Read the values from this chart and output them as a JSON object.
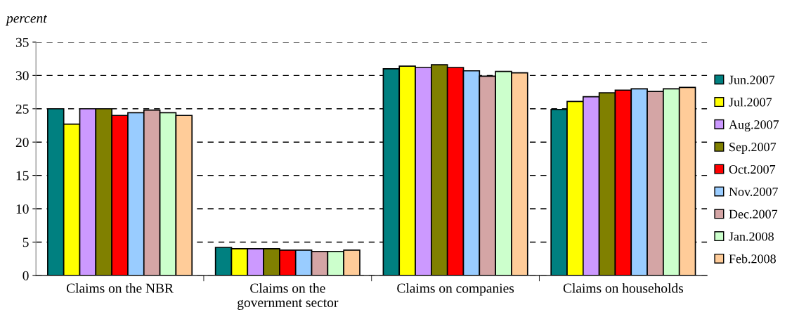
{
  "chart_data": {
    "type": "bar",
    "ylabel": "percent",
    "categories": [
      "Claims on the NBR",
      "Claims on the\ngovernment sector",
      "Claims on companies",
      "Claims on households"
    ],
    "series": [
      {
        "name": "Jun.2007",
        "color": "#008080",
        "values": [
          25.0,
          4.2,
          31.0,
          24.9
        ]
      },
      {
        "name": "Jul.2007",
        "color": "#ffff00",
        "values": [
          22.7,
          4.0,
          31.4,
          26.1
        ]
      },
      {
        "name": "Aug.2007",
        "color": "#cc99ff",
        "values": [
          25.0,
          4.0,
          31.2,
          26.8
        ]
      },
      {
        "name": "Sep.2007",
        "color": "#808000",
        "values": [
          25.0,
          4.0,
          31.6,
          27.4
        ]
      },
      {
        "name": "Oct.2007",
        "color": "#ff0000",
        "values": [
          24.0,
          3.8,
          31.2,
          27.8
        ]
      },
      {
        "name": "Nov.2007",
        "color": "#99ccff",
        "values": [
          24.4,
          3.8,
          30.7,
          28.0
        ]
      },
      {
        "name": "Dec.2007",
        "color": "#d4a5a5",
        "values": [
          24.8,
          3.6,
          29.9,
          27.6
        ]
      },
      {
        "name": "Jan.2008",
        "color": "#ccffcc",
        "values": [
          24.4,
          3.6,
          30.6,
          28.0
        ]
      },
      {
        "name": "Feb.2008",
        "color": "#ffcc99",
        "values": [
          24.0,
          3.8,
          30.4,
          28.2
        ]
      }
    ],
    "ylim": [
      0,
      35
    ],
    "yticks": [
      0,
      5,
      10,
      15,
      20,
      25,
      30,
      35
    ],
    "grid": "y",
    "legend": "right"
  }
}
